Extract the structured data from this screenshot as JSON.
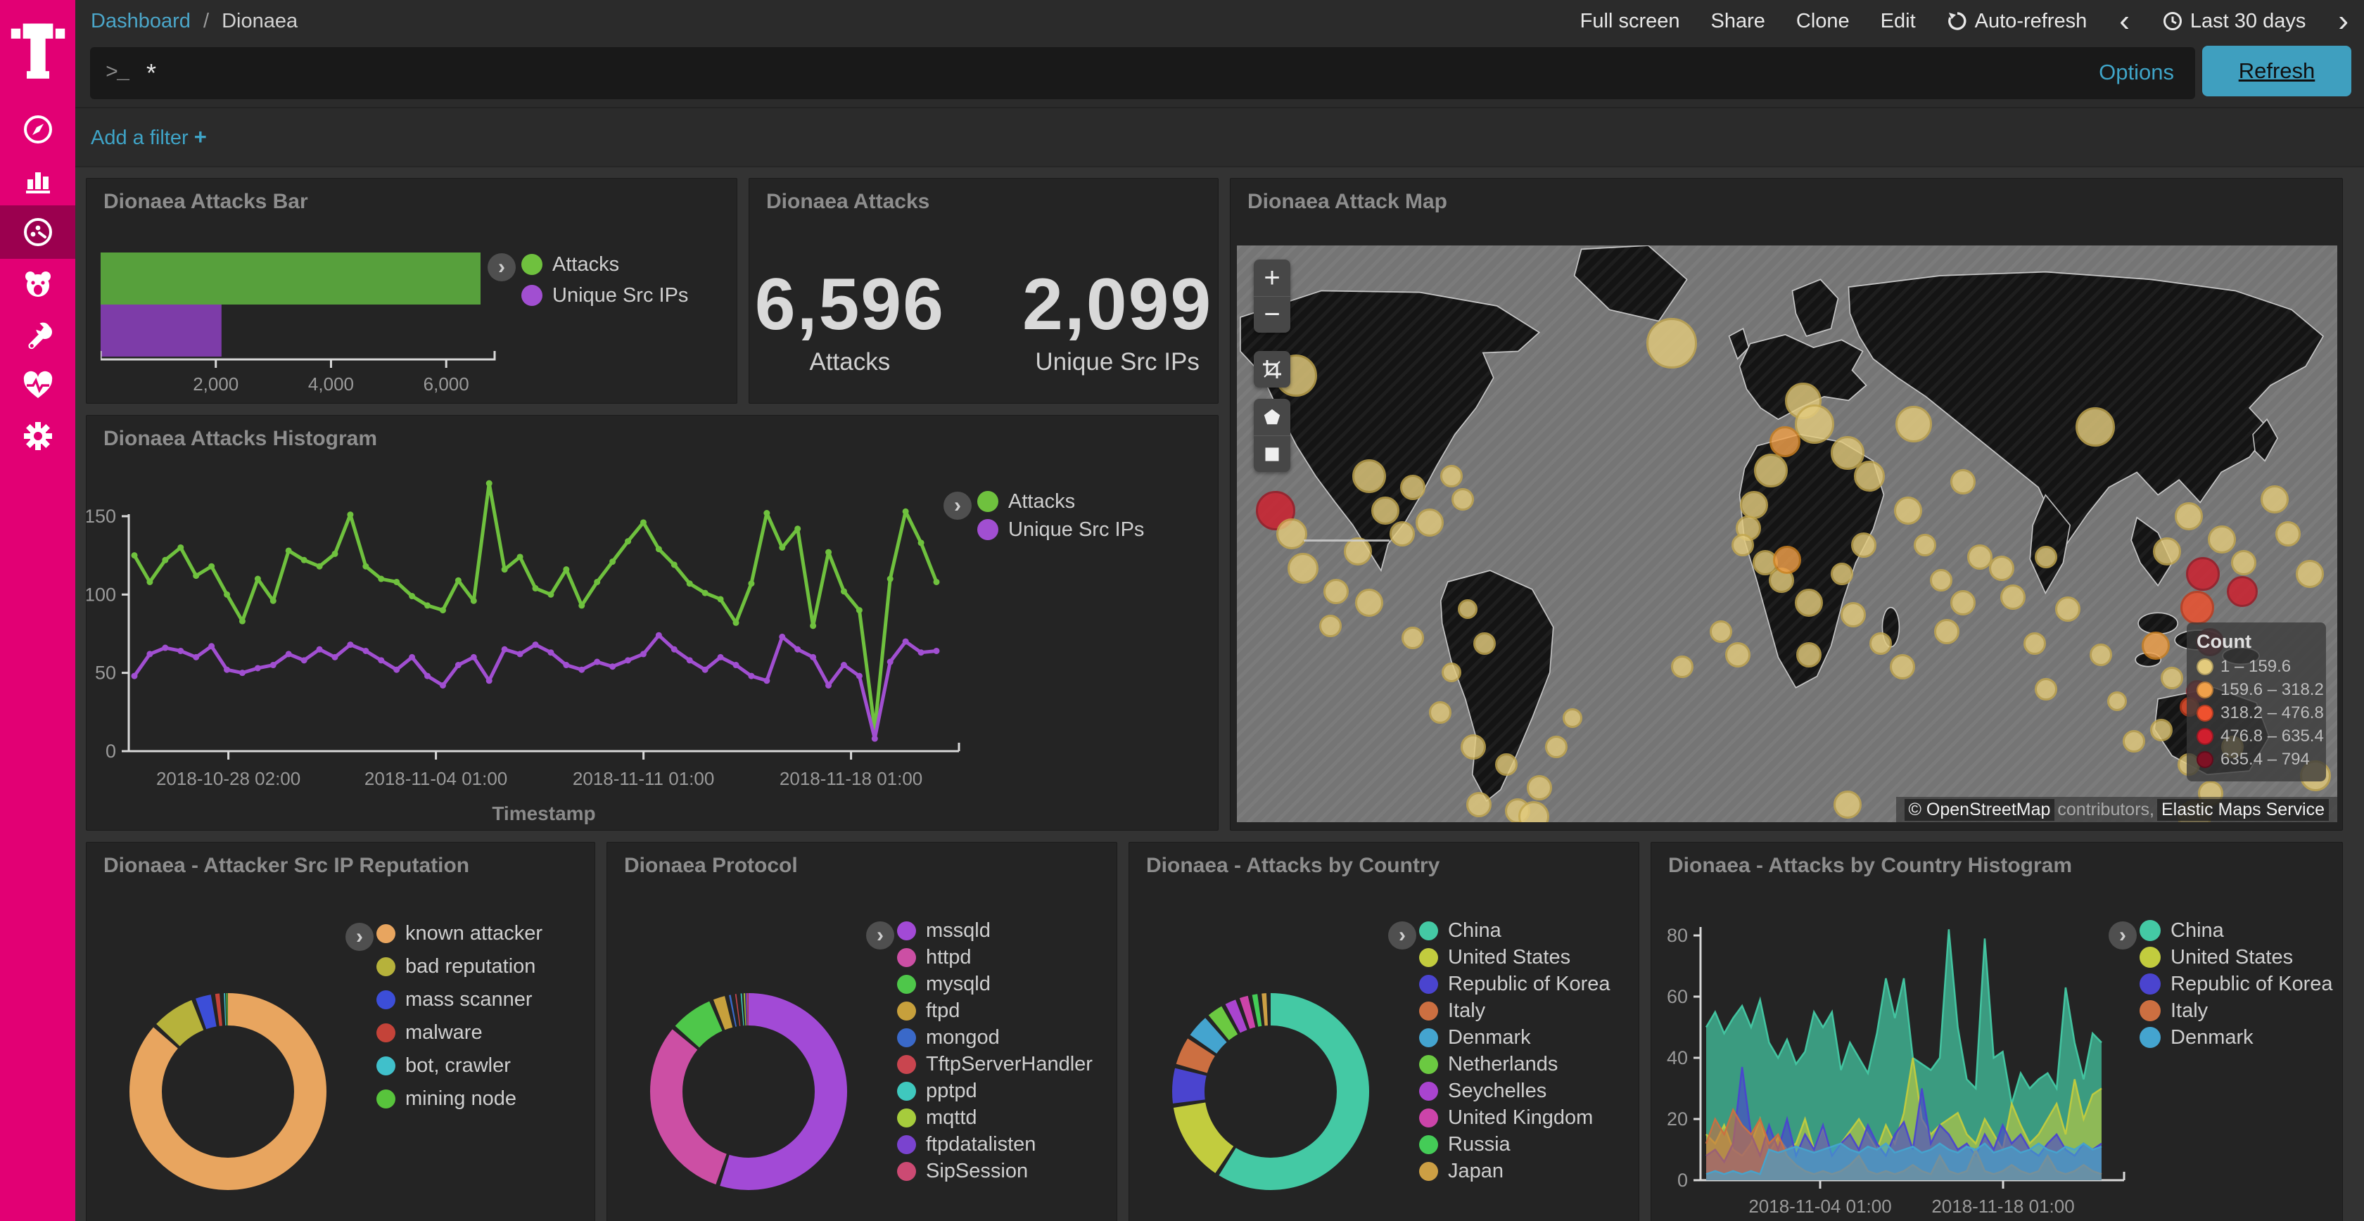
{
  "sidebar": {
    "brand": "T",
    "items": [
      {
        "id": "discover",
        "icon": "compass-icon",
        "selected": false
      },
      {
        "id": "visualize",
        "icon": "bar-chart-icon",
        "selected": false
      },
      {
        "id": "dashboard",
        "icon": "gauge-icon",
        "selected": true
      },
      {
        "id": "timelion",
        "icon": "lion-icon",
        "selected": false
      },
      {
        "id": "devtools",
        "icon": "wrench-icon",
        "selected": false
      },
      {
        "id": "monitoring",
        "icon": "heartbeat-icon",
        "selected": false
      },
      {
        "id": "management",
        "icon": "gear-icon",
        "selected": false
      }
    ],
    "brand_color": "#e20074",
    "selected_color": "#9b004f"
  },
  "topbar": {
    "breadcrumb": {
      "parent": "Dashboard",
      "separator": "/",
      "current": "Dionaea"
    },
    "actions": [
      "Full screen",
      "Share",
      "Clone",
      "Edit"
    ],
    "autorefresh": "Auto-refresh",
    "prev_icon": "‹",
    "next_icon": "›",
    "timepicker": "Last 30 days"
  },
  "querybar": {
    "prompt": ">_",
    "query": "*",
    "options_label": "Options",
    "refresh_label": "Refresh"
  },
  "filterbar": {
    "add_filter_label": "Add a filter",
    "plus": "+"
  },
  "map": {
    "title": "Dionaea Attack Map",
    "controls": {
      "zoom_in": "+",
      "zoom_out": "−"
    },
    "legend_title": "Count",
    "legend_bins": [
      {
        "label": "1 – 159.6",
        "color": "#e3cb7d"
      },
      {
        "label": "159.6 – 318.2",
        "color": "#f0a04a"
      },
      {
        "label": "318.2 – 476.8",
        "color": "#ef512e"
      },
      {
        "label": "476.8 – 635.4",
        "color": "#d01f2e"
      },
      {
        "label": "635.4 – 794",
        "color": "#7e1124"
      }
    ],
    "attribution": {
      "copyright": "© OpenStreetMap",
      "middle": "contributors,",
      "service": "Elastic Maps Service"
    },
    "bubble_colors": [
      "#e3cb7d",
      "#f0a04a",
      "#ef512e",
      "#d01f2e",
      "#7e1124"
    ],
    "bubble_borders": [
      "#c4a84e",
      "#d0821f",
      "#c23a1b",
      "#9d1522",
      "#560a18"
    ],
    "points": [
      [
        5.4,
        22.6,
        15,
        0
      ],
      [
        3.5,
        46,
        14,
        3
      ],
      [
        5,
        50,
        11,
        0
      ],
      [
        6,
        56,
        11,
        0
      ],
      [
        12,
        40,
        12,
        0
      ],
      [
        13.5,
        46,
        10,
        0
      ],
      [
        16,
        42,
        9,
        0
      ],
      [
        17.5,
        48,
        10,
        0
      ],
      [
        19.5,
        40,
        8,
        0
      ],
      [
        20.5,
        44,
        8,
        0
      ],
      [
        15,
        50,
        9,
        0
      ],
      [
        11,
        53,
        10,
        0
      ],
      [
        9,
        60,
        9,
        0
      ],
      [
        12,
        62,
        10,
        0
      ],
      [
        8.5,
        66,
        8,
        0
      ],
      [
        16,
        68,
        8,
        0
      ],
      [
        21,
        63,
        7,
        0
      ],
      [
        22.5,
        69,
        8,
        0
      ],
      [
        19.5,
        74,
        7,
        0
      ],
      [
        39.5,
        17,
        18,
        0
      ],
      [
        18.5,
        81,
        8,
        0
      ],
      [
        21.5,
        87,
        9,
        0
      ],
      [
        24.5,
        90,
        8,
        0
      ],
      [
        27.5,
        94,
        9,
        0
      ],
      [
        29,
        87,
        8,
        0
      ],
      [
        30.5,
        82,
        7,
        0
      ],
      [
        25.5,
        98,
        9,
        0
      ],
      [
        27,
        99,
        11,
        0
      ],
      [
        22,
        97,
        9,
        0
      ],
      [
        51.5,
        27,
        13,
        0
      ],
      [
        52.5,
        31,
        14,
        0
      ],
      [
        55.5,
        36,
        12,
        0
      ],
      [
        57.5,
        40,
        11,
        0
      ],
      [
        49.8,
        34,
        11,
        1
      ],
      [
        48.5,
        39,
        12,
        0
      ],
      [
        47,
        45,
        10,
        0
      ],
      [
        46.5,
        49,
        9,
        0
      ],
      [
        46,
        52,
        8,
        0
      ],
      [
        48,
        55,
        9,
        0
      ],
      [
        49.5,
        58,
        9,
        0
      ],
      [
        50,
        54.5,
        10,
        1
      ],
      [
        52,
        62,
        10,
        0
      ],
      [
        55,
        57,
        8,
        0
      ],
      [
        57,
        52,
        9,
        0
      ],
      [
        61,
        46,
        10,
        0
      ],
      [
        62.5,
        52,
        8,
        0
      ],
      [
        64,
        58,
        8,
        0
      ],
      [
        66,
        62,
        9,
        0
      ],
      [
        69.5,
        56,
        9,
        0
      ],
      [
        73.5,
        54,
        8,
        0
      ],
      [
        61.5,
        31,
        13,
        0
      ],
      [
        66,
        41,
        9,
        0
      ],
      [
        78,
        31.5,
        14,
        0
      ],
      [
        40.5,
        73,
        8,
        0
      ],
      [
        44,
        67,
        8,
        0
      ],
      [
        45.5,
        71,
        9,
        0
      ],
      [
        52,
        71,
        9,
        0
      ],
      [
        56,
        64,
        9,
        0
      ],
      [
        58.5,
        69,
        8,
        0
      ],
      [
        60.5,
        73,
        9,
        0
      ],
      [
        64.5,
        67,
        9,
        0
      ],
      [
        55.5,
        97,
        10,
        0
      ],
      [
        67.5,
        54,
        9,
        0
      ],
      [
        70.5,
        61,
        9,
        0
      ],
      [
        72.5,
        69,
        8,
        0
      ],
      [
        73.5,
        77,
        8,
        0
      ],
      [
        75.5,
        63,
        9,
        0
      ],
      [
        78.5,
        71,
        8,
        0
      ],
      [
        80,
        79,
        7,
        0
      ],
      [
        81.5,
        86,
        8,
        0
      ],
      [
        84.5,
        53,
        10,
        0
      ],
      [
        86.5,
        47,
        10,
        0
      ],
      [
        89.5,
        51,
        10,
        0
      ],
      [
        91.5,
        55,
        9,
        0
      ],
      [
        87.8,
        57,
        12,
        3
      ],
      [
        91.4,
        60,
        11,
        3
      ],
      [
        87.3,
        62.8,
        12,
        2
      ],
      [
        83.5,
        69.4,
        10,
        1
      ],
      [
        88.4,
        68.8,
        10,
        4
      ],
      [
        87.3,
        77.3,
        8,
        3
      ],
      [
        86.6,
        80,
        7,
        2
      ],
      [
        94.3,
        44,
        10,
        0
      ],
      [
        95.5,
        50,
        9,
        0
      ],
      [
        97.5,
        57,
        10,
        0
      ],
      [
        84,
        84,
        8,
        0
      ],
      [
        86.5,
        90,
        8,
        0
      ],
      [
        88.5,
        95,
        9,
        0
      ],
      [
        90.5,
        87,
        8,
        0
      ],
      [
        87,
        99,
        12,
        0
      ],
      [
        98,
        92,
        11,
        0
      ],
      [
        85,
        75,
        8,
        0
      ]
    ]
  },
  "chart_data": [
    {
      "type": "bar",
      "title": "Dionaea Attacks Bar",
      "orientation": "horizontal",
      "categories": [
        "Attacks",
        "Unique Src IPs"
      ],
      "values": [
        6596,
        2099
      ],
      "colors": [
        "#57a03c",
        "#7d3ca8"
      ],
      "xlim": [
        0,
        6700
      ],
      "xticks": [
        2000,
        4000,
        6000
      ],
      "xtick_labels": [
        "2,000",
        "4,000",
        "6,000"
      ],
      "legend_position": "right"
    },
    {
      "type": "table",
      "title": "Dionaea Attacks",
      "metrics": [
        {
          "value": "6,596",
          "label": "Attacks"
        },
        {
          "value": "2,099",
          "label": "Unique Src IPs"
        }
      ]
    },
    {
      "type": "line",
      "title": "Dionaea Attacks Histogram",
      "xlabel": "Timestamp",
      "ylabel": "",
      "ylim": [
        0,
        175
      ],
      "yticks": [
        0,
        50,
        100,
        150
      ],
      "xtick_labels": [
        "2018-10-28 02:00",
        "2018-11-04 01:00",
        "2018-11-11 01:00",
        "2018-11-18 01:00"
      ],
      "grid": false,
      "legend_position": "right",
      "series": [
        {
          "name": "Attacks",
          "color": "#6fc13e",
          "values": [
            125,
            108,
            122,
            130,
            112,
            118,
            100,
            83,
            110,
            96,
            128,
            122,
            118,
            126,
            151,
            118,
            110,
            108,
            99,
            93,
            90,
            109,
            96,
            171,
            116,
            124,
            104,
            100,
            116,
            93,
            108,
            121,
            134,
            146,
            129,
            119,
            107,
            101,
            97,
            82,
            107,
            152,
            130,
            142,
            80,
            127,
            102,
            90,
            14,
            110,
            153,
            133,
            108
          ]
        },
        {
          "name": "Unique Src IPs",
          "color": "#a14fd1",
          "values": [
            48,
            62,
            66,
            64,
            60,
            67,
            52,
            50,
            53,
            55,
            62,
            58,
            65,
            60,
            68,
            64,
            58,
            52,
            60,
            48,
            42,
            55,
            60,
            45,
            65,
            62,
            68,
            63,
            55,
            52,
            57,
            54,
            58,
            62,
            74,
            65,
            58,
            52,
            60,
            55,
            48,
            45,
            73,
            65,
            60,
            42,
            55,
            48,
            8,
            57,
            70,
            63,
            64
          ]
        }
      ]
    },
    {
      "type": "pie",
      "donut": true,
      "title": "Dionaea - Attacker Src IP Reputation",
      "labels": [
        "known attacker",
        "bad reputation",
        "mass scanner",
        "malware",
        "bot, crawler",
        "mining node"
      ],
      "values": [
        5640,
        495,
        210,
        92,
        25,
        18
      ],
      "colors": [
        "#e8a55f",
        "#b6b23b",
        "#3c4ed8",
        "#c44339",
        "#40c0cb",
        "#58c43c"
      ],
      "legend_position": "right"
    },
    {
      "type": "pie",
      "donut": true,
      "title": "Dionaea Protocol",
      "labels": [
        "mssqld",
        "httpd",
        "mysqld",
        "ftpd",
        "mongod",
        "TftpServerHandler",
        "pptpd",
        "mqttd",
        "ftpdatalisten",
        "SipSession"
      ],
      "values": [
        3630,
        2045,
        495,
        172,
        66,
        59,
        33,
        20,
        16,
        16
      ],
      "colors": [
        "#a24ad6",
        "#cc4fa4",
        "#4ec74a",
        "#c7a03c",
        "#3a69c9",
        "#c9454f",
        "#3fc8be",
        "#a6cc3c",
        "#7a43cf",
        "#cc4a73"
      ],
      "legend_position": "right"
    },
    {
      "type": "pie",
      "donut": true,
      "title": "Dionaea - Attacks by Country",
      "labels": [
        "China",
        "United States",
        "Republic of Korea",
        "Italy",
        "Denmark",
        "Netherlands",
        "Seychelles",
        "United Kingdom",
        "Russia",
        "Japan"
      ],
      "values": [
        3760,
        858,
        409,
        330,
        277,
        205,
        158,
        132,
        99,
        92
      ],
      "colors": [
        "#44c9a4",
        "#c2cc3e",
        "#4a44cf",
        "#cc6f41",
        "#44a4cf",
        "#6bc941",
        "#a944cf",
        "#cc44a9",
        "#44cc57",
        "#cc9f44"
      ],
      "legend_position": "right"
    },
    {
      "type": "area",
      "title": "Dionaea - Attacks by Country Histogram",
      "xlabel": "Timestamp",
      "ylim": [
        0,
        85
      ],
      "yticks": [
        0,
        20,
        40,
        60,
        80
      ],
      "xtick_labels": [
        "2018-11-04 01:00",
        "2018-11-18 01:00"
      ],
      "legend_position": "right",
      "series": [
        {
          "name": "China",
          "color": "#44c9a4",
          "values": [
            50,
            55,
            48,
            53,
            57,
            50,
            59,
            45,
            40,
            46,
            38,
            42,
            55,
            50,
            55,
            36,
            45,
            40,
            35,
            48,
            66,
            53,
            66,
            40,
            38,
            36,
            40,
            82,
            50,
            33,
            30,
            79,
            40,
            42,
            25,
            35,
            30,
            33,
            35,
            30,
            63,
            45,
            33,
            48,
            45
          ]
        },
        {
          "name": "United States",
          "color": "#c2cc3e",
          "values": [
            15,
            12,
            18,
            10,
            8,
            12,
            20,
            9,
            14,
            10,
            12,
            20,
            10,
            17,
            8,
            12,
            16,
            20,
            15,
            10,
            18,
            12,
            22,
            40,
            20,
            15,
            18,
            20,
            22,
            15,
            12,
            20,
            15,
            10,
            25,
            18,
            12,
            15,
            20,
            25,
            15,
            33,
            20,
            28,
            30
          ]
        },
        {
          "name": "Republic of Korea",
          "color": "#4a44cf",
          "values": [
            8,
            10,
            6,
            12,
            37,
            15,
            8,
            18,
            10,
            20,
            8,
            15,
            10,
            18,
            8,
            12,
            15,
            10,
            18,
            12,
            8,
            15,
            19,
            10,
            30,
            12,
            18,
            15,
            10,
            12,
            8,
            15,
            10,
            18,
            12,
            15,
            10,
            8,
            12,
            15,
            10,
            8,
            12,
            10,
            12
          ]
        },
        {
          "name": "Italy",
          "color": "#cc6f41",
          "values": [
            12,
            20,
            15,
            23,
            18,
            15,
            20,
            12,
            15,
            8,
            5,
            3,
            2,
            3,
            2,
            3,
            5,
            8,
            3,
            2,
            3,
            2,
            3,
            5,
            3,
            2,
            8,
            3,
            2,
            3,
            10,
            3,
            2,
            3,
            5,
            3,
            2,
            3,
            8,
            3,
            2,
            3,
            5,
            3,
            2
          ]
        },
        {
          "name": "Denmark",
          "color": "#44a4cf",
          "values": [
            2,
            3,
            2,
            3,
            2,
            3,
            2,
            10,
            9,
            10,
            11,
            10,
            9,
            10,
            11,
            12,
            10,
            9,
            11,
            10,
            12,
            9,
            10,
            11,
            9,
            10,
            12,
            10,
            9,
            11,
            10,
            12,
            9,
            10,
            11,
            9,
            10,
            12,
            10,
            9,
            11,
            10,
            12,
            10,
            11
          ]
        }
      ]
    }
  ]
}
